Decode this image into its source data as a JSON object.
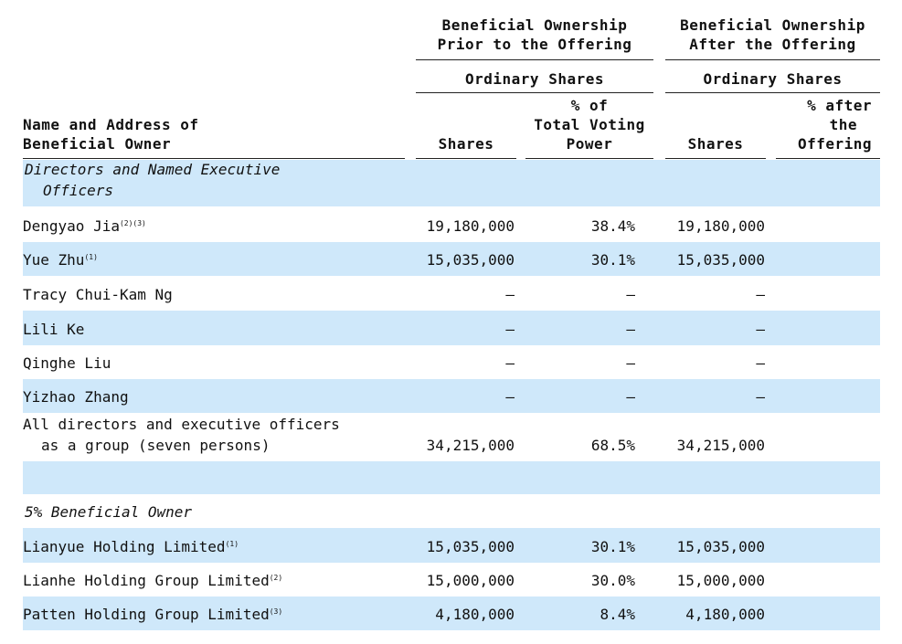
{
  "header": {
    "prior": [
      "Beneficial Ownership",
      "Prior to the Offering"
    ],
    "after": [
      "Beneficial Ownership",
      "After the Offering"
    ],
    "prior_sub": "Ordinary Shares",
    "after_sub": "Ordinary Shares",
    "columns": {
      "name": [
        "Name and Address of",
        "Beneficial Owner"
      ],
      "shares": "Shares",
      "pct": [
        "% of",
        "Total Voting",
        "Power"
      ],
      "after_shares": "Shares",
      "after_pct": [
        "% after",
        "the",
        "Offering"
      ]
    }
  },
  "table": {
    "rows": [
      {
        "section": [
          "Directors and Named Executive",
          "Officers"
        ]
      },
      {
        "name": [
          "Dengyao Jia"
        ],
        "notes": "(2)(3)",
        "shares": "19,180,000",
        "pct": "38.4%",
        "after_shares": "19,180,000"
      },
      {
        "name": [
          "Yue Zhu"
        ],
        "notes": "(1)",
        "shares": "15,035,000",
        "pct": "30.1%",
        "after_shares": "15,035,000"
      },
      {
        "name": [
          "Tracy Chui-Kam Ng"
        ],
        "shares": "—",
        "pct": "—",
        "after_shares": "—"
      },
      {
        "name": [
          "Lili Ke"
        ],
        "shares": "—",
        "pct": "—",
        "after_shares": "—"
      },
      {
        "name": [
          "Qinghe Liu"
        ],
        "shares": "—",
        "pct": "—",
        "after_shares": "—"
      },
      {
        "name": [
          "Yizhao Zhang"
        ],
        "shares": "—",
        "pct": "—",
        "after_shares": "—"
      },
      {
        "name": [
          "All directors and executive officers",
          "as a group (seven persons)"
        ],
        "shares": "34,215,000",
        "pct": "68.5%",
        "after_shares": "34,215,000"
      },
      {
        "section": [
          "5% Beneficial Owner"
        ]
      },
      {
        "name": [
          "Lianyue Holding Limited"
        ],
        "notes": "(1)",
        "shares": "15,035,000",
        "pct": "30.1%",
        "after_shares": "15,035,000"
      },
      {
        "name": [
          "Lianhe Holding Group Limited"
        ],
        "notes": "(2)",
        "shares": "15,000,000",
        "pct": "30.0%",
        "after_shares": "15,000,000"
      },
      {
        "name": [
          "Patten Holding Group Limited"
        ],
        "notes": "(3)",
        "shares": "4,180,000",
        "pct": "8.4%",
        "after_shares": "4,180,000"
      }
    ]
  }
}
